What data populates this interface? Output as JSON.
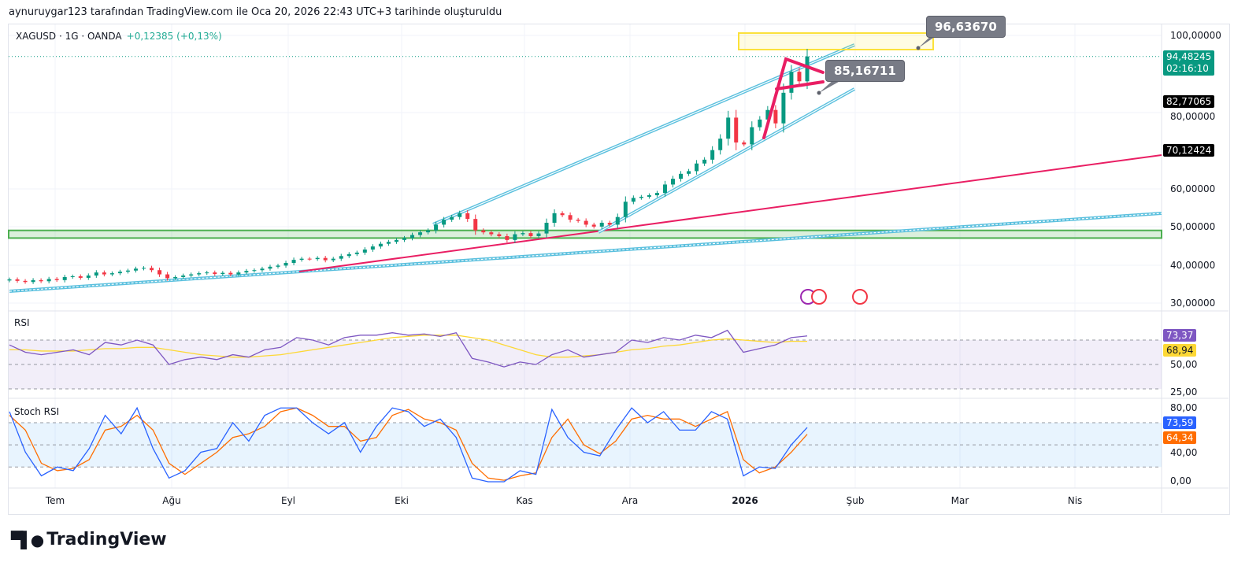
{
  "credit": "aynuruygar123 tarafından TradingView.com ile Oca 20, 2026 22:43 UTC+3 tarihinde oluşturuldu",
  "symbol": {
    "title": "XAGUSD · 1G · OANDA",
    "change": "+0,12385 (+0,13%)"
  },
  "price_axis": [
    "100,00000",
    "80,00000",
    "60,00000",
    "50,00000",
    "40,00000",
    "30,00000"
  ],
  "price_tags": {
    "last": "94,48245",
    "countdown": "02:16:10",
    "level1": "82,77065",
    "level2": "70,12424"
  },
  "callouts": {
    "top": "96,63670",
    "mid": "85,16711"
  },
  "rsi": {
    "label": "RSI",
    "axis": [
      "50,00",
      "25,00"
    ],
    "value": "73,37",
    "ma": "68,94"
  },
  "stoch": {
    "label": "Stoch RSI",
    "axis": [
      "80,00",
      "40,00",
      "0,00"
    ],
    "k": "73,59",
    "d": "64,34"
  },
  "time_axis": [
    "Tem",
    "Ağu",
    "Eyl",
    "Eki",
    "Kas",
    "Ara",
    "2026",
    "Şub",
    "Mar",
    "Nis"
  ],
  "logo": "TradingView",
  "colors": {
    "up": "#089981",
    "down": "#f23645",
    "rsi": "#7e57c2",
    "rsi_ma": "#fdd835",
    "k": "#2962ff",
    "d": "#ff6d00",
    "channel": "#5bc0de",
    "trend": "#e91e63"
  },
  "chart_data": {
    "type": "candlestick",
    "price_range": [
      30,
      100
    ],
    "closes": [
      36.2,
      35.8,
      35.5,
      36,
      35.7,
      36.3,
      36,
      36.8,
      37,
      36.6,
      37.2,
      38,
      37.5,
      37.8,
      38.2,
      38.5,
      39,
      39.2,
      38.6,
      37.5,
      36.5,
      36.8,
      37.2,
      37.5,
      37.8,
      38,
      37.6,
      37.9,
      37.5,
      38,
      38.4,
      38.6,
      39,
      39.5,
      39.8,
      40.5,
      41.3,
      41.6,
      41.5,
      41.8,
      41.2,
      41.6,
      42.3,
      42.8,
      43.2,
      44,
      44.8,
      45.5,
      46,
      46.5,
      47,
      47.8,
      48.5,
      49,
      50.5,
      51.8,
      52.5,
      53.5,
      52,
      49,
      48.5,
      48,
      47.5,
      46.5,
      48,
      48.3,
      47.5,
      48.2,
      51,
      53.5,
      53,
      51.8,
      51.5,
      50.5,
      50,
      51,
      50.5,
      52.5,
      56.5,
      57.5,
      57.8,
      58.2,
      58.8,
      61,
      62.5,
      63.8,
      64.5,
      66.5,
      67.5,
      70,
      73,
      78.5,
      72,
      71.5,
      76,
      78,
      80.5,
      77,
      85,
      90.5,
      88,
      94.48
    ],
    "rsi": [
      66,
      60,
      58,
      60,
      62,
      58,
      68,
      66,
      70,
      66,
      50,
      54,
      56,
      54,
      58,
      56,
      62,
      64,
      72,
      70,
      66,
      72,
      74,
      74,
      76,
      74,
      75,
      73,
      76,
      55,
      52,
      48,
      52,
      50,
      58,
      62,
      56,
      58,
      60,
      70,
      68,
      72,
      70,
      74,
      72,
      78,
      60,
      63,
      66,
      72,
      73.37
    ],
    "rsi_ma": [
      62,
      62,
      61,
      61,
      61,
      62,
      63,
      63,
      64,
      64,
      62,
      60,
      58,
      57,
      56,
      56,
      57,
      58,
      60,
      62,
      64,
      66,
      68,
      70,
      72,
      73,
      74,
      74,
      74,
      72,
      70,
      66,
      62,
      58,
      56,
      56,
      57,
      58,
      60,
      62,
      63,
      65,
      66,
      68,
      70,
      71,
      70,
      69,
      68,
      69,
      68.94
    ],
    "stoch_k": [
      95,
      40,
      8,
      20,
      15,
      45,
      90,
      65,
      100,
      45,
      5,
      15,
      40,
      45,
      80,
      55,
      90,
      100,
      100,
      80,
      65,
      80,
      40,
      75,
      100,
      95,
      75,
      85,
      60,
      5,
      0,
      0,
      15,
      10,
      98,
      60,
      40,
      35,
      70,
      100,
      80,
      95,
      70,
      70,
      95,
      85,
      8,
      20,
      18,
      50,
      73.59
    ],
    "stoch_d": [
      90,
      70,
      25,
      15,
      18,
      30,
      70,
      75,
      90,
      70,
      25,
      10,
      25,
      40,
      60,
      65,
      75,
      95,
      100,
      90,
      75,
      75,
      55,
      60,
      90,
      98,
      85,
      80,
      70,
      25,
      5,
      2,
      8,
      12,
      60,
      85,
      50,
      38,
      55,
      85,
      90,
      85,
      85,
      75,
      85,
      95,
      30,
      12,
      20,
      40,
      64.34
    ],
    "support_zone": [
      47,
      49
    ]
  }
}
